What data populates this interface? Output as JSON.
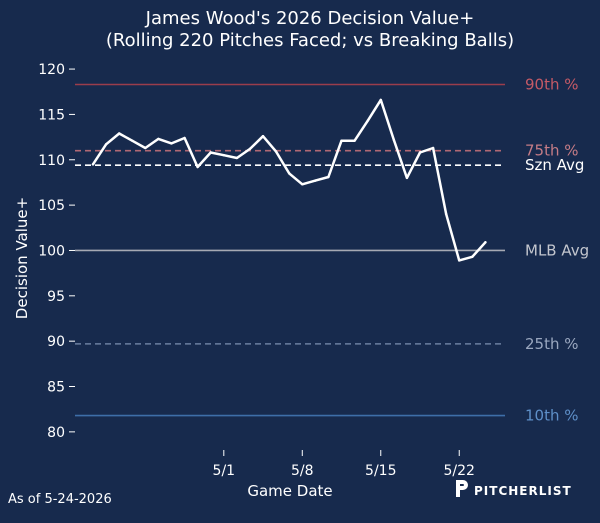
{
  "chart_data": {
    "type": "line",
    "title": "James Wood's 2026 Decision Value+",
    "subtitle": "(Rolling 220 Pitches Faced; vs Breaking Balls)",
    "xlabel": "Game Date",
    "ylabel": "Decision Value+",
    "ylim": [
      78,
      121
    ],
    "yticks": [
      80,
      85,
      90,
      95,
      100,
      105,
      110,
      115,
      120
    ],
    "xticks": [
      {
        "label": "5/1",
        "index": 10
      },
      {
        "label": "5/8",
        "index": 16
      },
      {
        "label": "5/15",
        "index": 22
      },
      {
        "label": "5/22",
        "index": 28
      }
    ],
    "grid": false,
    "series": [
      {
        "color": "#ffffff",
        "values": [
          109.5,
          111.7,
          112.9,
          112.1,
          111.3,
          112.3,
          111.8,
          112.4,
          109.2,
          110.8,
          110.5,
          110.2,
          111.2,
          112.6,
          110.9,
          108.5,
          107.3,
          107.7,
          108.1,
          112.1,
          112.1,
          114.3,
          116.6,
          112.2,
          108.0,
          110.8,
          111.3,
          104.0,
          98.9,
          99.3,
          100.9
        ]
      }
    ],
    "reference_lines": [
      {
        "label": "90th %",
        "value": 118.3,
        "color": "#9a3d4c",
        "label_color": "#c55a66",
        "style": "solid"
      },
      {
        "label": "75th %",
        "value": 111.0,
        "color": "#b06874",
        "label_color": "#c57c86",
        "style": "dashed"
      },
      {
        "label": "Szn Avg",
        "value": 109.4,
        "color": "#ffffff",
        "label_color": "#ffffff",
        "style": "dashed"
      },
      {
        "label": "MLB Avg",
        "value": 100.0,
        "color": "#a6a9b3",
        "label_color": "#c3c6ce",
        "style": "solid"
      },
      {
        "label": "25th %",
        "value": 89.7,
        "color": "#6b7fa0",
        "label_color": "#9aa7bf",
        "style": "dashed"
      },
      {
        "label": "10th %",
        "value": 81.8,
        "color": "#3e6ea8",
        "label_color": "#5e8fc8",
        "style": "solid"
      }
    ]
  },
  "footer": {
    "as_of": "As of 5-24-2026",
    "brand": "PITCHERLIST"
  }
}
